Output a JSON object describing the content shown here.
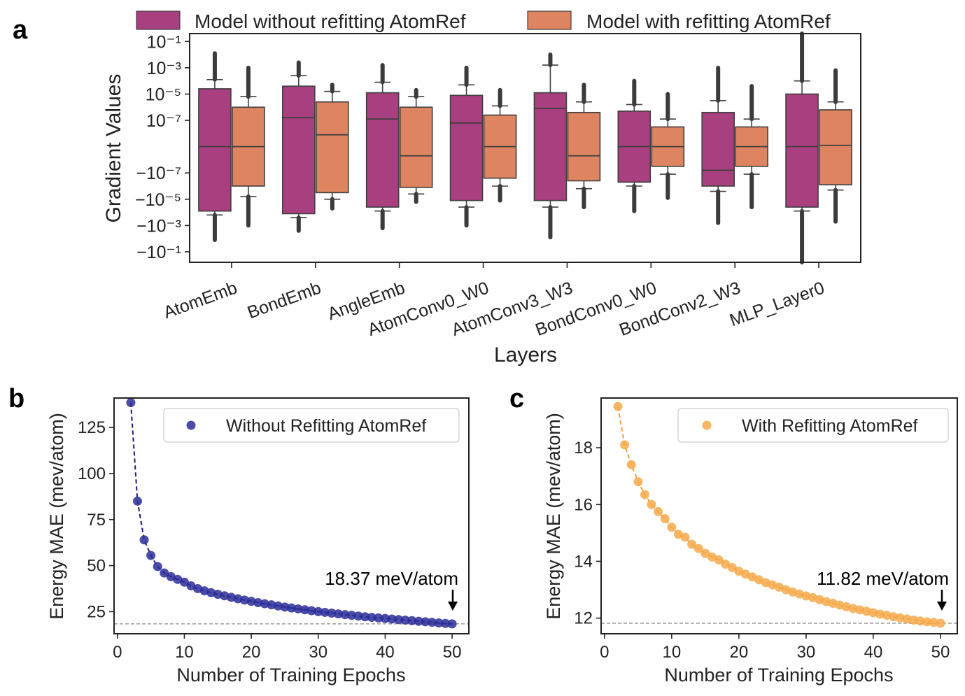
{
  "panels": {
    "a": "a",
    "b": "b",
    "c": "c"
  },
  "colors": {
    "without": "#a83f7f",
    "with": "#de8460",
    "blue": "#2c2c99",
    "orange": "#f5a94a"
  },
  "chart_data": [
    {
      "id": "a",
      "type": "box",
      "title": "",
      "xlabel": "Layers",
      "ylabel": "Gradient Values",
      "y_scale": "symlog",
      "yticks": [
        4,
        3,
        2,
        1,
        0,
        -1,
        -2,
        -3,
        -4
      ],
      "ytick_labels": [
        "10⁻¹",
        "10⁻³",
        "10⁻⁵",
        "10⁻⁷",
        "−10⁻⁷",
        "−10⁻⁵",
        "−10⁻³",
        "−10⁻¹"
      ],
      "ytick_positions": [
        4,
        3,
        2,
        1,
        -1,
        -2,
        -3,
        -4
      ],
      "ylim": [
        -4.4,
        4.3
      ],
      "categories": [
        "AtomEmb",
        "BondEmb",
        "AngleEmb",
        "AtomConv0_W0",
        "AtomConv3_W3",
        "BondConv0_W0",
        "BondConv2_W3",
        "MLP_Layer0"
      ],
      "legend": [
        "Model without refitting AtomRef",
        "Model with refitting AtomRef"
      ],
      "series": [
        {
          "name": "Model without refitting AtomRef",
          "boxes": [
            {
              "q1": -2.45,
              "median": 0.0,
              "q3": 2.2,
              "wlo": -2.6,
              "whi": 2.55,
              "flo": -3.55,
              "fhi": 3.55
            },
            {
              "q1": -2.55,
              "median": 1.1,
              "q3": 2.3,
              "wlo": -2.7,
              "whi": 2.7,
              "flo": -3.2,
              "fhi": 3.2
            },
            {
              "q1": -2.3,
              "median": 1.05,
              "q3": 2.05,
              "wlo": -2.45,
              "whi": 2.45,
              "flo": -3.1,
              "fhi": 3.1
            },
            {
              "q1": -2.05,
              "median": 0.9,
              "q3": 1.95,
              "wlo": -2.3,
              "whi": 2.35,
              "flo": -3.0,
              "fhi": 3.0
            },
            {
              "q1": -2.05,
              "median": 1.45,
              "q3": 2.05,
              "wlo": -2.3,
              "whi": 3.1,
              "flo": -3.45,
              "fhi": 3.5
            },
            {
              "q1": -1.35,
              "median": 0.0,
              "q3": 1.35,
              "wlo": -1.5,
              "whi": 1.6,
              "flo": -2.45,
              "fhi": 2.5
            },
            {
              "q1": -1.5,
              "median": -0.9,
              "q3": 1.3,
              "wlo": -1.7,
              "whi": 1.75,
              "flo": -2.9,
              "fhi": 3.0
            },
            {
              "q1": -2.3,
              "median": 0.0,
              "q3": 2.0,
              "wlo": -2.45,
              "whi": 2.5,
              "flo": -4.4,
              "fhi": 4.3
            }
          ]
        },
        {
          "name": "Model with refitting AtomRef",
          "boxes": [
            {
              "q1": -1.5,
              "median": 0.0,
              "q3": 1.5,
              "wlo": -1.9,
              "whi": 1.9,
              "flo": -3.0,
              "fhi": 3.0
            },
            {
              "q1": -1.75,
              "median": 0.45,
              "q3": 1.7,
              "wlo": -2.0,
              "whi": 2.1,
              "flo": -2.35,
              "fhi": 2.35
            },
            {
              "q1": -1.55,
              "median": -0.35,
              "q3": 1.5,
              "wlo": -1.8,
              "whi": 1.9,
              "flo": -2.1,
              "fhi": 2.15
            },
            {
              "q1": -1.2,
              "median": 0.0,
              "q3": 1.2,
              "wlo": -1.5,
              "whi": 1.55,
              "flo": -2.05,
              "fhi": 2.15
            },
            {
              "q1": -1.3,
              "median": -0.35,
              "q3": 1.3,
              "wlo": -1.6,
              "whi": 1.7,
              "flo": -2.3,
              "fhi": 2.35
            },
            {
              "q1": -0.75,
              "median": 0.0,
              "q3": 0.75,
              "wlo": -1.05,
              "whi": 1.05,
              "flo": -1.95,
              "fhi": 2.0
            },
            {
              "q1": -0.75,
              "median": 0.0,
              "q3": 0.75,
              "wlo": -1.05,
              "whi": 1.05,
              "flo": -2.3,
              "fhi": 2.3
            },
            {
              "q1": -1.45,
              "median": 0.05,
              "q3": 1.4,
              "wlo": -1.65,
              "whi": 1.7,
              "flo": -2.85,
              "fhi": 2.9
            }
          ]
        }
      ]
    },
    {
      "id": "b",
      "type": "line",
      "title": "",
      "xlabel": "Number of Training Epochs",
      "ylabel": "Energy MAE (mev/atom)",
      "xlim": [
        -0.5,
        52.5
      ],
      "ylim": [
        13,
        141
      ],
      "xticks": [
        0,
        10,
        20,
        30,
        40,
        50
      ],
      "yticks": [
        25,
        50,
        75,
        100,
        125
      ],
      "legend": "Without Refitting AtomRef",
      "reference_line": 18.37,
      "annotation": "18.37 meV/atom",
      "series": [
        {
          "name": "Without Refitting AtomRef",
          "x": [
            2,
            3,
            4,
            5,
            6,
            7,
            8,
            9,
            10,
            11,
            12,
            13,
            14,
            15,
            16,
            17,
            18,
            19,
            20,
            21,
            22,
            23,
            24,
            25,
            26,
            27,
            28,
            29,
            30,
            31,
            32,
            33,
            34,
            35,
            36,
            37,
            38,
            39,
            40,
            41,
            42,
            43,
            44,
            45,
            46,
            47,
            48,
            49,
            50
          ],
          "values": [
            138.5,
            85.0,
            64.0,
            55.5,
            49.5,
            46.0,
            44.0,
            42.5,
            41.0,
            39.0,
            37.5,
            36.3,
            35.3,
            34.4,
            33.6,
            32.8,
            32.0,
            31.3,
            30.6,
            29.9,
            29.3,
            28.7,
            28.1,
            27.5,
            27.0,
            26.5,
            26.0,
            25.5,
            25.0,
            24.6,
            24.2,
            23.8,
            23.4,
            23.0,
            22.6,
            22.2,
            21.9,
            21.6,
            21.3,
            21.0,
            20.7,
            20.4,
            20.1,
            19.8,
            19.5,
            19.2,
            18.9,
            18.6,
            18.37
          ]
        }
      ]
    },
    {
      "id": "c",
      "type": "line",
      "title": "",
      "xlabel": "Number of Training Epochs",
      "ylabel": "Energy MAE (mev/atom)",
      "xlim": [
        -0.5,
        52.5
      ],
      "ylim": [
        11.45,
        19.75
      ],
      "xticks": [
        0,
        10,
        20,
        30,
        40,
        50
      ],
      "yticks": [
        12,
        14,
        16,
        18
      ],
      "legend": "With Refitting AtomRef",
      "reference_line": 11.82,
      "annotation": "11.82 meV/atom",
      "series": [
        {
          "name": "With Refitting AtomRef",
          "x": [
            2,
            3,
            4,
            5,
            6,
            7,
            8,
            9,
            10,
            11,
            12,
            13,
            14,
            15,
            16,
            17,
            18,
            19,
            20,
            21,
            22,
            23,
            24,
            25,
            26,
            27,
            28,
            29,
            30,
            31,
            32,
            33,
            34,
            35,
            36,
            37,
            38,
            39,
            40,
            41,
            42,
            43,
            44,
            45,
            46,
            47,
            48,
            49,
            50
          ],
          "values": [
            19.45,
            18.1,
            17.4,
            16.8,
            16.35,
            16.0,
            15.75,
            15.5,
            15.2,
            14.95,
            14.85,
            14.6,
            14.45,
            14.28,
            14.15,
            14.05,
            13.9,
            13.78,
            13.65,
            13.55,
            13.45,
            13.35,
            13.25,
            13.17,
            13.09,
            13.0,
            12.92,
            12.85,
            12.78,
            12.72,
            12.65,
            12.58,
            12.52,
            12.46,
            12.4,
            12.34,
            12.29,
            12.24,
            12.19,
            12.14,
            12.1,
            12.05,
            12.01,
            11.97,
            11.93,
            11.9,
            11.87,
            11.85,
            11.82
          ]
        }
      ]
    }
  ]
}
